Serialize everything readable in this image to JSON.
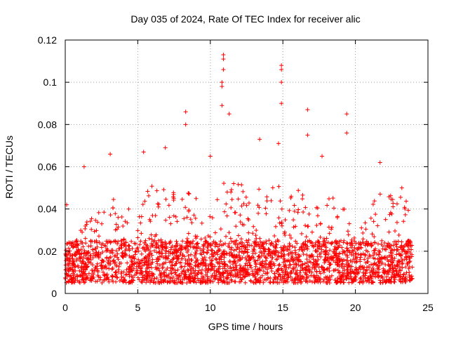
{
  "chart_data": {
    "type": "scatter",
    "title": "Day 035 of 2024, Rate Of TEC Index for receiver alic",
    "xlabel": "GPS time / hours",
    "ylabel": "ROTI / TECUs",
    "xlim": [
      0,
      25
    ],
    "ylim": [
      0,
      0.12
    ],
    "x_ticks": [
      0,
      5,
      10,
      15,
      20,
      25
    ],
    "x_tick_labels": [
      "0",
      "5",
      "10",
      "15",
      "20",
      "25"
    ],
    "y_ticks": [
      0,
      0.02,
      0.04,
      0.06,
      0.08,
      0.1,
      0.12
    ],
    "y_tick_labels": [
      "0",
      "0.02",
      "0.04",
      "0.06",
      "0.08",
      "0.1",
      "0.12"
    ],
    "grid": true,
    "marker": "+",
    "series_color": "#ff0000",
    "series": [
      {
        "name": "ROTI",
        "x_range": [
          0,
          24
        ],
        "baseline_band": [
          0.005,
          0.025
        ],
        "notable_points": [
          {
            "x": 0.1,
            "y": 0.042
          },
          {
            "x": 1.3,
            "y": 0.06
          },
          {
            "x": 3.1,
            "y": 0.066
          },
          {
            "x": 5.4,
            "y": 0.067
          },
          {
            "x": 6.9,
            "y": 0.069
          },
          {
            "x": 8.3,
            "y": 0.086
          },
          {
            "x": 8.3,
            "y": 0.08
          },
          {
            "x": 10.0,
            "y": 0.065
          },
          {
            "x": 10.9,
            "y": 0.113
          },
          {
            "x": 10.9,
            "y": 0.111
          },
          {
            "x": 10.9,
            "y": 0.106
          },
          {
            "x": 10.8,
            "y": 0.1
          },
          {
            "x": 10.8,
            "y": 0.098
          },
          {
            "x": 10.8,
            "y": 0.089
          },
          {
            "x": 11.3,
            "y": 0.085
          },
          {
            "x": 13.4,
            "y": 0.073
          },
          {
            "x": 14.7,
            "y": 0.071
          },
          {
            "x": 14.9,
            "y": 0.108
          },
          {
            "x": 14.9,
            "y": 0.106
          },
          {
            "x": 14.9,
            "y": 0.1
          },
          {
            "x": 14.9,
            "y": 0.09
          },
          {
            "x": 16.7,
            "y": 0.087
          },
          {
            "x": 16.7,
            "y": 0.075
          },
          {
            "x": 17.7,
            "y": 0.065
          },
          {
            "x": 19.4,
            "y": 0.085
          },
          {
            "x": 19.4,
            "y": 0.076
          },
          {
            "x": 21.7,
            "y": 0.062
          },
          {
            "x": 23.2,
            "y": 0.05
          }
        ]
      }
    ]
  }
}
